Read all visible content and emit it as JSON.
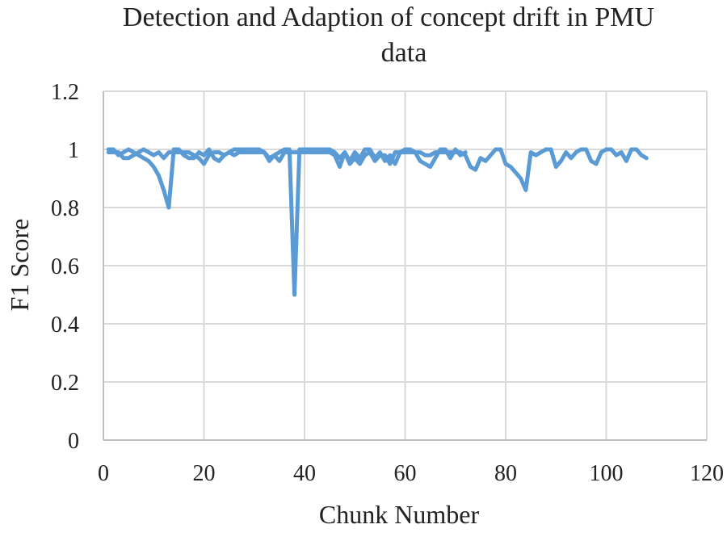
{
  "chart_data": {
    "type": "line",
    "title_lines": [
      "Detection and Adaption of concept drift in PMU",
      "data"
    ],
    "xlabel": "Chunk Number",
    "ylabel": "F1 Score",
    "xlim": [
      0,
      120
    ],
    "ylim": [
      0,
      1.2
    ],
    "x_ticks": [
      "0",
      "20",
      "40",
      "60",
      "80",
      "100",
      "120"
    ],
    "y_ticks": [
      "0",
      "0.2",
      "0.4",
      "0.6",
      "0.8",
      "1",
      "1.2"
    ],
    "grid": true,
    "legend": "none",
    "series_color": "#5B9BD5",
    "series": [
      {
        "x": [
          1,
          2,
          3,
          4,
          5,
          6,
          7,
          8,
          9,
          10,
          11,
          12,
          13,
          14,
          15,
          16,
          17,
          18,
          19,
          20,
          21,
          22,
          23,
          24,
          25,
          26,
          27,
          28,
          29,
          30,
          31,
          32,
          33,
          34,
          35,
          36,
          37,
          38,
          39,
          40,
          41,
          42,
          43,
          44,
          45,
          46,
          47,
          48,
          49,
          50,
          51,
          52,
          53,
          54,
          55,
          56,
          57,
          58,
          59,
          60,
          61,
          62,
          63,
          64,
          65,
          66,
          67,
          68,
          69,
          70,
          71,
          72
        ],
        "values": [
          1.0,
          1.0,
          0.98,
          0.99,
          1.0,
          0.99,
          0.98,
          0.97,
          0.96,
          0.94,
          0.91,
          0.86,
          0.8,
          1.0,
          1.0,
          0.98,
          0.97,
          0.97,
          0.99,
          0.98,
          1.0,
          0.97,
          0.96,
          0.98,
          0.99,
          1.0,
          1.0,
          1.0,
          1.0,
          1.0,
          1.0,
          0.99,
          0.97,
          0.98,
          0.99,
          1.0,
          1.0,
          0.5,
          1.0,
          1.0,
          1.0,
          1.0,
          1.0,
          1.0,
          1.0,
          0.99,
          0.97,
          0.99,
          0.96,
          0.99,
          0.97,
          1.0,
          1.0,
          0.97,
          0.99,
          0.96,
          0.98,
          0.95,
          0.99,
          1.0,
          1.0,
          0.99,
          0.96,
          0.95,
          0.94,
          0.97,
          1.0,
          1.0,
          0.97,
          1.0,
          0.98,
          0.99
        ]
      },
      {
        "x": [
          1,
          2,
          3,
          4,
          5,
          6,
          7,
          8,
          9,
          10,
          11,
          12,
          13,
          14,
          15,
          16,
          17,
          18,
          19,
          20,
          21,
          22,
          23,
          24,
          25,
          26,
          27,
          28,
          29,
          30,
          31,
          32,
          33,
          34,
          35,
          36,
          37,
          38,
          39,
          40,
          41,
          42,
          43,
          44,
          45,
          46,
          47,
          48,
          49,
          50,
          51,
          52,
          53,
          54,
          55,
          56,
          57,
          58,
          59,
          60,
          61,
          62,
          63,
          64,
          65,
          66,
          67,
          68,
          69,
          70,
          71,
          72,
          73,
          74,
          75,
          76,
          77,
          78,
          79,
          80,
          81,
          82,
          83,
          84,
          85,
          86,
          87,
          88,
          89,
          90,
          91,
          92,
          93,
          94,
          95,
          96,
          97,
          98,
          99,
          100,
          101,
          102,
          103,
          104,
          105,
          106,
          107,
          108
        ],
        "values": [
          0.99,
          0.99,
          0.99,
          0.97,
          0.97,
          0.98,
          0.99,
          1.0,
          0.99,
          0.98,
          0.99,
          0.97,
          0.99,
          0.99,
          0.99,
          0.99,
          0.99,
          0.98,
          0.97,
          0.95,
          0.98,
          0.99,
          0.99,
          0.98,
          0.99,
          0.98,
          0.99,
          0.99,
          0.99,
          0.99,
          0.99,
          0.99,
          0.96,
          0.98,
          0.96,
          0.99,
          0.99,
          0.99,
          0.99,
          0.99,
          0.99,
          0.99,
          0.99,
          0.99,
          0.99,
          0.98,
          0.94,
          0.99,
          0.95,
          0.97,
          0.95,
          0.98,
          0.99,
          0.96,
          0.98,
          0.98,
          0.95,
          0.99,
          0.99,
          0.99,
          0.99,
          0.99,
          0.99,
          0.98,
          0.98,
          0.99,
          0.99,
          0.99,
          0.99,
          0.99,
          0.99,
          0.98,
          0.94,
          0.93,
          0.97,
          0.96,
          0.98,
          1.0,
          1.0,
          0.95,
          0.94,
          0.92,
          0.9,
          0.86,
          0.99,
          0.98,
          0.99,
          1.0,
          1.0,
          0.94,
          0.96,
          0.99,
          0.97,
          0.99,
          1.0,
          1.0,
          0.96,
          0.95,
          0.99,
          1.0,
          1.0,
          0.98,
          0.99,
          0.96,
          1.0,
          1.0,
          0.98,
          0.97
        ]
      }
    ]
  }
}
